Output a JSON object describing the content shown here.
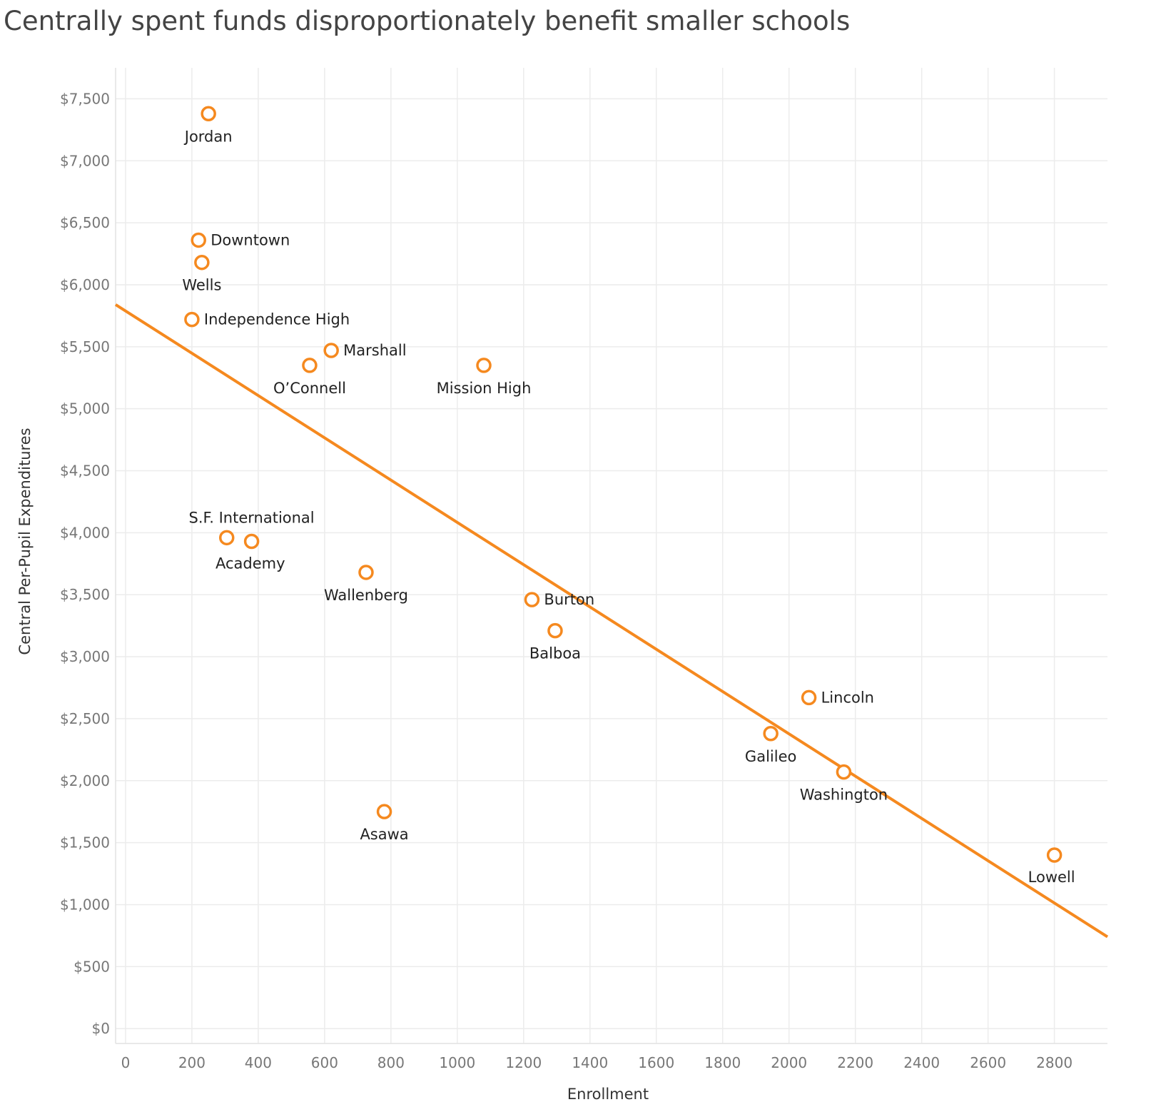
{
  "title": "Centrally spent funds disproportionately benefit smaller schools",
  "colors": {
    "accent": "#f5891f",
    "grid": "#ececec",
    "axis_text": "#777777"
  },
  "chart_data": {
    "type": "scatter",
    "title": "Centrally spent funds disproportionately benefit smaller schools",
    "xlabel": "Enrollment",
    "ylabel": "Central Per-Pupil Expenditures",
    "xlim": [
      -30,
      2960
    ],
    "ylim": [
      -120,
      7750
    ],
    "x_ticks": [
      0,
      200,
      400,
      600,
      800,
      1000,
      1200,
      1400,
      1600,
      1800,
      2000,
      2200,
      2400,
      2600,
      2800
    ],
    "y_ticks": [
      0,
      500,
      1000,
      1500,
      2000,
      2500,
      3000,
      3500,
      4000,
      4500,
      5000,
      5500,
      6000,
      6500,
      7000,
      7500
    ],
    "y_tick_labels": [
      "$0",
      "$500",
      "$1,000",
      "$1,500",
      "$2,000",
      "$2,500",
      "$3,000",
      "$3,500",
      "$4,000",
      "$4,500",
      "$5,000",
      "$5,500",
      "$6,000",
      "$6,500",
      "$7,000",
      "$7,500"
    ],
    "grid": true,
    "trend_line": {
      "x": [
        -30,
        2960
      ],
      "y": [
        5840,
        740
      ]
    },
    "points": [
      {
        "x": 250,
        "y": 7380
      },
      {
        "x": 220,
        "y": 6360
      },
      {
        "x": 230,
        "y": 6180
      },
      {
        "x": 200,
        "y": 5720
      },
      {
        "x": 620,
        "y": 5470
      },
      {
        "x": 555,
        "y": 5350
      },
      {
        "x": 1080,
        "y": 5350
      },
      {
        "x": 305,
        "y": 3960
      },
      {
        "x": 380,
        "y": 3930
      },
      {
        "x": 725,
        "y": 3680
      },
      {
        "x": 1225,
        "y": 3460
      },
      {
        "x": 1295,
        "y": 3210
      },
      {
        "x": 2060,
        "y": 2670
      },
      {
        "x": 1945,
        "y": 2380
      },
      {
        "x": 2165,
        "y": 2070
      },
      {
        "x": 780,
        "y": 1750
      },
      {
        "x": 2800,
        "y": 1400
      }
    ],
    "labels": [
      {
        "text": "Jordan",
        "x": 250,
        "y": 7380,
        "pos": "below"
      },
      {
        "text": "Downtown",
        "x": 220,
        "y": 6360,
        "pos": "right"
      },
      {
        "text": "Wells",
        "x": 230,
        "y": 6180,
        "pos": "below"
      },
      {
        "text": "Independence High",
        "x": 200,
        "y": 5720,
        "pos": "right"
      },
      {
        "text": "Marshall",
        "x": 620,
        "y": 5470,
        "pos": "right"
      },
      {
        "text": "O’Connell",
        "x": 555,
        "y": 5350,
        "pos": "below"
      },
      {
        "text": "Mission High",
        "x": 1080,
        "y": 5350,
        "pos": "below"
      },
      {
        "text": "S.F.  International",
        "x": 380,
        "y": 3930,
        "pos": "above"
      },
      {
        "text": "Academy",
        "x": 305,
        "y": 3960,
        "pos": "below-right"
      },
      {
        "text": "Wallenberg",
        "x": 725,
        "y": 3680,
        "pos": "below"
      },
      {
        "text": "Burton",
        "x": 1225,
        "y": 3460,
        "pos": "right"
      },
      {
        "text": "Balboa",
        "x": 1295,
        "y": 3210,
        "pos": "below"
      },
      {
        "text": "Lincoln",
        "x": 2060,
        "y": 2670,
        "pos": "right"
      },
      {
        "text": "Galileo",
        "x": 1945,
        "y": 2380,
        "pos": "below"
      },
      {
        "text": "Washington",
        "x": 2165,
        "y": 2070,
        "pos": "below"
      },
      {
        "text": "Asawa",
        "x": 780,
        "y": 1750,
        "pos": "below"
      },
      {
        "text": "Lowell",
        "x": 2800,
        "y": 1400,
        "pos": "below-left"
      }
    ]
  }
}
